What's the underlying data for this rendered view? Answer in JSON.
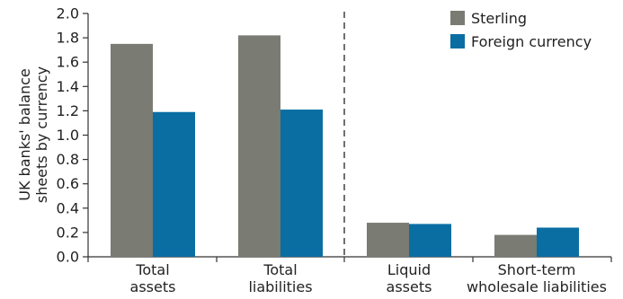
{
  "chart_data": {
    "type": "bar",
    "categories": [
      [
        "Total",
        "assets"
      ],
      [
        "Total",
        "liabilities"
      ],
      [
        "Liquid",
        "assets"
      ],
      [
        "Short-term",
        "wholesale liabilities"
      ]
    ],
    "series": [
      {
        "name": "Sterling",
        "color": "#7a7b73",
        "values": [
          1.75,
          1.82,
          0.28,
          0.18
        ]
      },
      {
        "name": "Foreign currency",
        "color": "#0a6ea3",
        "values": [
          1.19,
          1.21,
          0.27,
          0.24
        ]
      }
    ],
    "ylabel": [
      "UK banks' balance",
      "sheets by currency"
    ],
    "ylim": [
      0,
      2.0
    ],
    "yticks": [
      "0.0",
      "0.2",
      "0.4",
      "0.6",
      "0.8",
      "1.0",
      "1.2",
      "1.4",
      "1.6",
      "1.8",
      "2.0"
    ],
    "grid": false,
    "legend_position": "top-right",
    "divider": "dashed vertical line between the second and third category groups"
  }
}
